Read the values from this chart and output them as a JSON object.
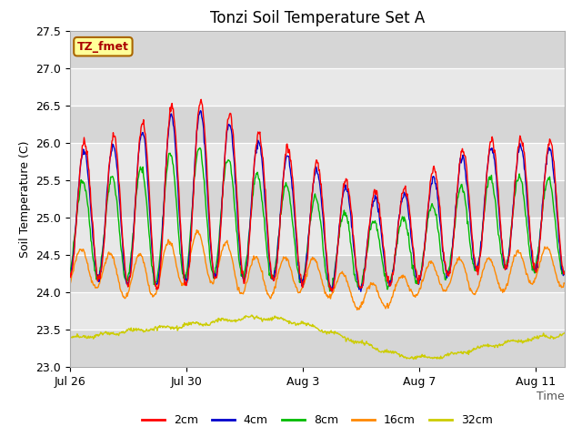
{
  "title": "Tonzi Soil Temperature Set A",
  "ylabel": "Soil Temperature (C)",
  "xlabel": "Time",
  "annotation": "TZ_fmet",
  "ylim": [
    23.0,
    27.5
  ],
  "yticks": [
    23.0,
    23.5,
    24.0,
    24.5,
    25.0,
    25.5,
    26.0,
    26.5,
    27.0,
    27.5
  ],
  "xtick_labels": [
    "Jul 26",
    "Jul 30",
    "Aug 3",
    "Aug 7",
    "Aug 11"
  ],
  "xtick_pos": [
    0,
    4,
    8,
    12,
    16
  ],
  "xlim": [
    0,
    17
  ],
  "series_colors": [
    "#ff0000",
    "#0000cc",
    "#00bb00",
    "#ff8800",
    "#cccc00"
  ],
  "series_labels": [
    "2cm",
    "4cm",
    "8cm",
    "16cm",
    "32cm"
  ],
  "plot_bg": "#e8e8e8",
  "stripe_color": "#d0d0d0",
  "fig_bg": "#ffffff",
  "annotation_bg": "#ffff99",
  "annotation_border": "#aa6600",
  "annotation_text_color": "#aa0000",
  "title_fontsize": 12,
  "label_fontsize": 9,
  "tick_fontsize": 9,
  "legend_fontsize": 9
}
